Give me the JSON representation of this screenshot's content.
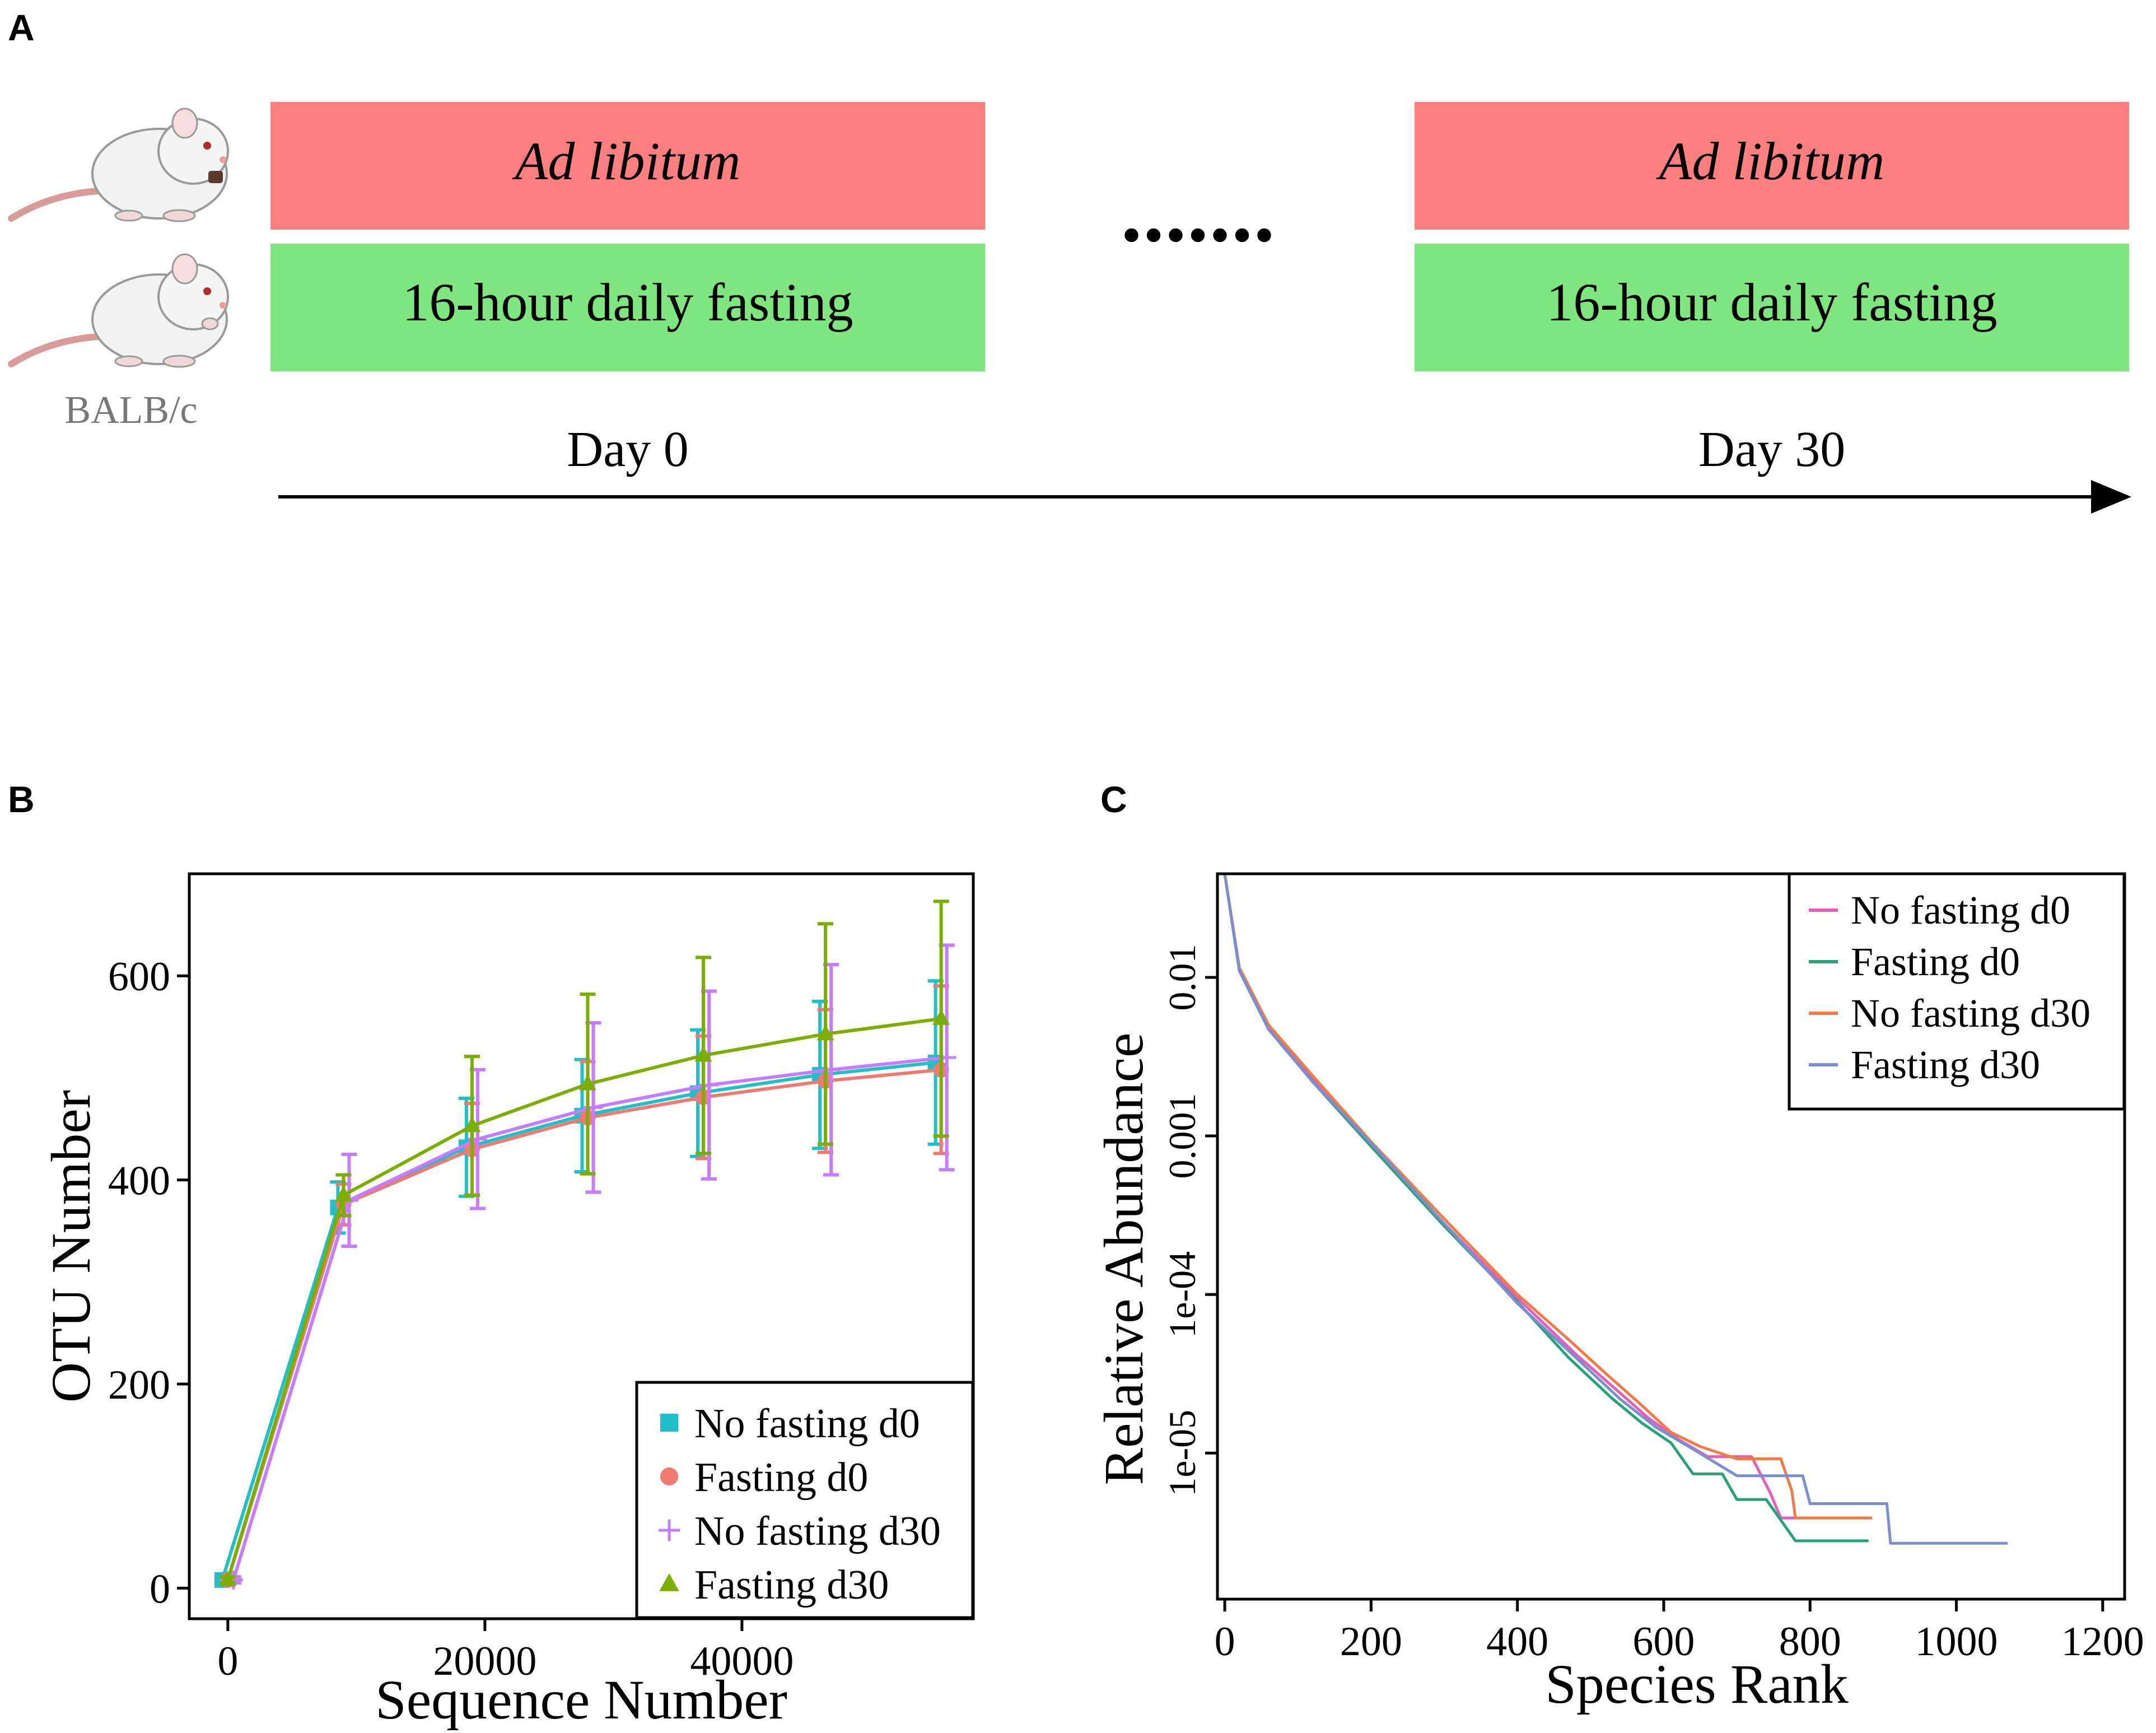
{
  "panels": {
    "a": {
      "letter": "A",
      "strain": "BALB/c",
      "ad_libitum_label": "Ad libitum",
      "fasting_label": "16-hour daily fasting",
      "ellipsis": ".......",
      "start_label": "Day 0",
      "end_label": "Day 30",
      "colors": {
        "ad_libitum": "#fe7f7f",
        "fasting": "#7fe57f"
      }
    },
    "b": {
      "letter": "B"
    },
    "c": {
      "letter": "C"
    }
  },
  "chart_data": [
    {
      "id": "rarefaction",
      "type": "line",
      "title": "",
      "xlabel": "Sequence Number",
      "ylabel": "OTU Number",
      "xlim": [
        -3000,
        58000
      ],
      "ylim": [
        -30,
        700
      ],
      "xticks": [
        0,
        20000,
        40000
      ],
      "yticks": [
        0,
        200,
        400,
        600
      ],
      "xtick_labels": [
        "0",
        "20000",
        "40000"
      ],
      "ytick_labels": [
        "0",
        "200",
        "400",
        "600"
      ],
      "x": [
        0,
        9000,
        19000,
        28000,
        37000,
        46500,
        55500
      ],
      "legend_position": "bottom-right",
      "series": [
        {
          "name": "No fasting d0",
          "marker": "square",
          "color": "#1fc0c7",
          "values": [
            8,
            373,
            432,
            463,
            485,
            503,
            515
          ],
          "errors": [
            3,
            25,
            48,
            55,
            62,
            72,
            80
          ]
        },
        {
          "name": "Fasting d0",
          "marker": "circle",
          "color": "#ef7a72",
          "values": [
            8,
            376,
            430,
            461,
            481,
            497,
            508
          ],
          "errors": [
            3,
            20,
            45,
            55,
            60,
            70,
            82
          ]
        },
        {
          "name": "No fasting d30",
          "marker": "plus",
          "color": "#c77cff",
          "values": [
            8,
            380,
            440,
            471,
            493,
            508,
            520
          ],
          "errors": [
            3,
            45,
            68,
            83,
            92,
            103,
            110
          ]
        },
        {
          "name": "Fasting d30",
          "marker": "triangle",
          "color": "#7cae00",
          "values": [
            8,
            385,
            453,
            494,
            522,
            543,
            558
          ],
          "errors": [
            3,
            20,
            68,
            88,
            96,
            108,
            115
          ]
        }
      ]
    },
    {
      "id": "rank-abundance",
      "type": "line",
      "title": "",
      "xlabel": "Species Rank",
      "ylabel": "Relative Abundance",
      "scale_y": "log",
      "xlim": [
        -10,
        1230
      ],
      "ylim": [
        1.2e-06,
        0.045
      ],
      "xticks": [
        0,
        200,
        400,
        600,
        800,
        1000,
        1200
      ],
      "xtick_labels": [
        "0",
        "200",
        "400",
        "600",
        "800",
        "1000",
        "1200"
      ],
      "yticks": [
        0.01,
        0.001,
        0.0001,
        1e-05
      ],
      "ytick_labels": [
        "0.01",
        "0.001",
        "1e-04",
        "1e-05"
      ],
      "legend_position": "top-right",
      "series": [
        {
          "name": "No fasting d0",
          "color": "#e45fb7",
          "points": [
            [
              0,
              0.045
            ],
            [
              20,
              0.011
            ],
            [
              60,
              0.0048
            ],
            [
              120,
              0.0023
            ],
            [
              200,
              0.00088
            ],
            [
              300,
              0.00028
            ],
            [
              400,
              9.5e-05
            ],
            [
              480,
              4.2e-05
            ],
            [
              540,
              2.4e-05
            ],
            [
              580,
              1.65e-05
            ],
            [
              620,
              1.22e-05
            ],
            [
              660,
              9.5e-06
            ],
            [
              720,
              9.5e-06
            ],
            [
              745,
              5.7e-06
            ],
            [
              760,
              3.9e-06
            ],
            [
              880,
              3.9e-06
            ]
          ]
        },
        {
          "name": "Fasting d0",
          "color": "#27a27c",
          "points": [
            [
              0,
              0.045
            ],
            [
              20,
              0.011
            ],
            [
              60,
              0.0047
            ],
            [
              120,
              0.0022
            ],
            [
              200,
              0.00086
            ],
            [
              300,
              0.00027
            ],
            [
              400,
              9e-05
            ],
            [
              470,
              4e-05
            ],
            [
              530,
              2.2e-05
            ],
            [
              570,
              1.55e-05
            ],
            [
              610,
              1.16e-05
            ],
            [
              640,
              7.4e-06
            ],
            [
              680,
              7.4e-06
            ],
            [
              700,
              5.1e-06
            ],
            [
              740,
              5.1e-06
            ],
            [
              780,
              2.8e-06
            ],
            [
              880,
              2.8e-06
            ]
          ]
        },
        {
          "name": "No fasting d30",
          "color": "#f07c45",
          "points": [
            [
              0,
              0.045
            ],
            [
              20,
              0.0115
            ],
            [
              60,
              0.005
            ],
            [
              120,
              0.0024
            ],
            [
              200,
              0.00092
            ],
            [
              300,
              0.0003
            ],
            [
              400,
              0.0001
            ],
            [
              470,
              5.2e-05
            ],
            [
              520,
              3.2e-05
            ],
            [
              570,
              2e-05
            ],
            [
              610,
              1.35e-05
            ],
            [
              650,
              1.1e-05
            ],
            [
              700,
              9.2e-06
            ],
            [
              760,
              9.2e-06
            ],
            [
              775,
              5.8e-06
            ],
            [
              780,
              3.9e-06
            ],
            [
              885,
              3.9e-06
            ]
          ]
        },
        {
          "name": "Fasting d30",
          "color": "#7b8ed0",
          "points": [
            [
              0,
              0.045
            ],
            [
              20,
              0.011
            ],
            [
              60,
              0.0047
            ],
            [
              120,
              0.0022
            ],
            [
              200,
              0.0009
            ],
            [
              300,
              0.00028
            ],
            [
              400,
              8.8e-05
            ],
            [
              480,
              4e-05
            ],
            [
              540,
              2.2e-05
            ],
            [
              590,
              1.45e-05
            ],
            [
              640,
              1.06e-05
            ],
            [
              700,
              7.2e-06
            ],
            [
              790,
              7.2e-06
            ],
            [
              800,
              4.8e-06
            ],
            [
              905,
              4.8e-06
            ],
            [
              910,
              2.7e-06
            ],
            [
              1070,
              2.7e-06
            ]
          ]
        }
      ]
    }
  ]
}
